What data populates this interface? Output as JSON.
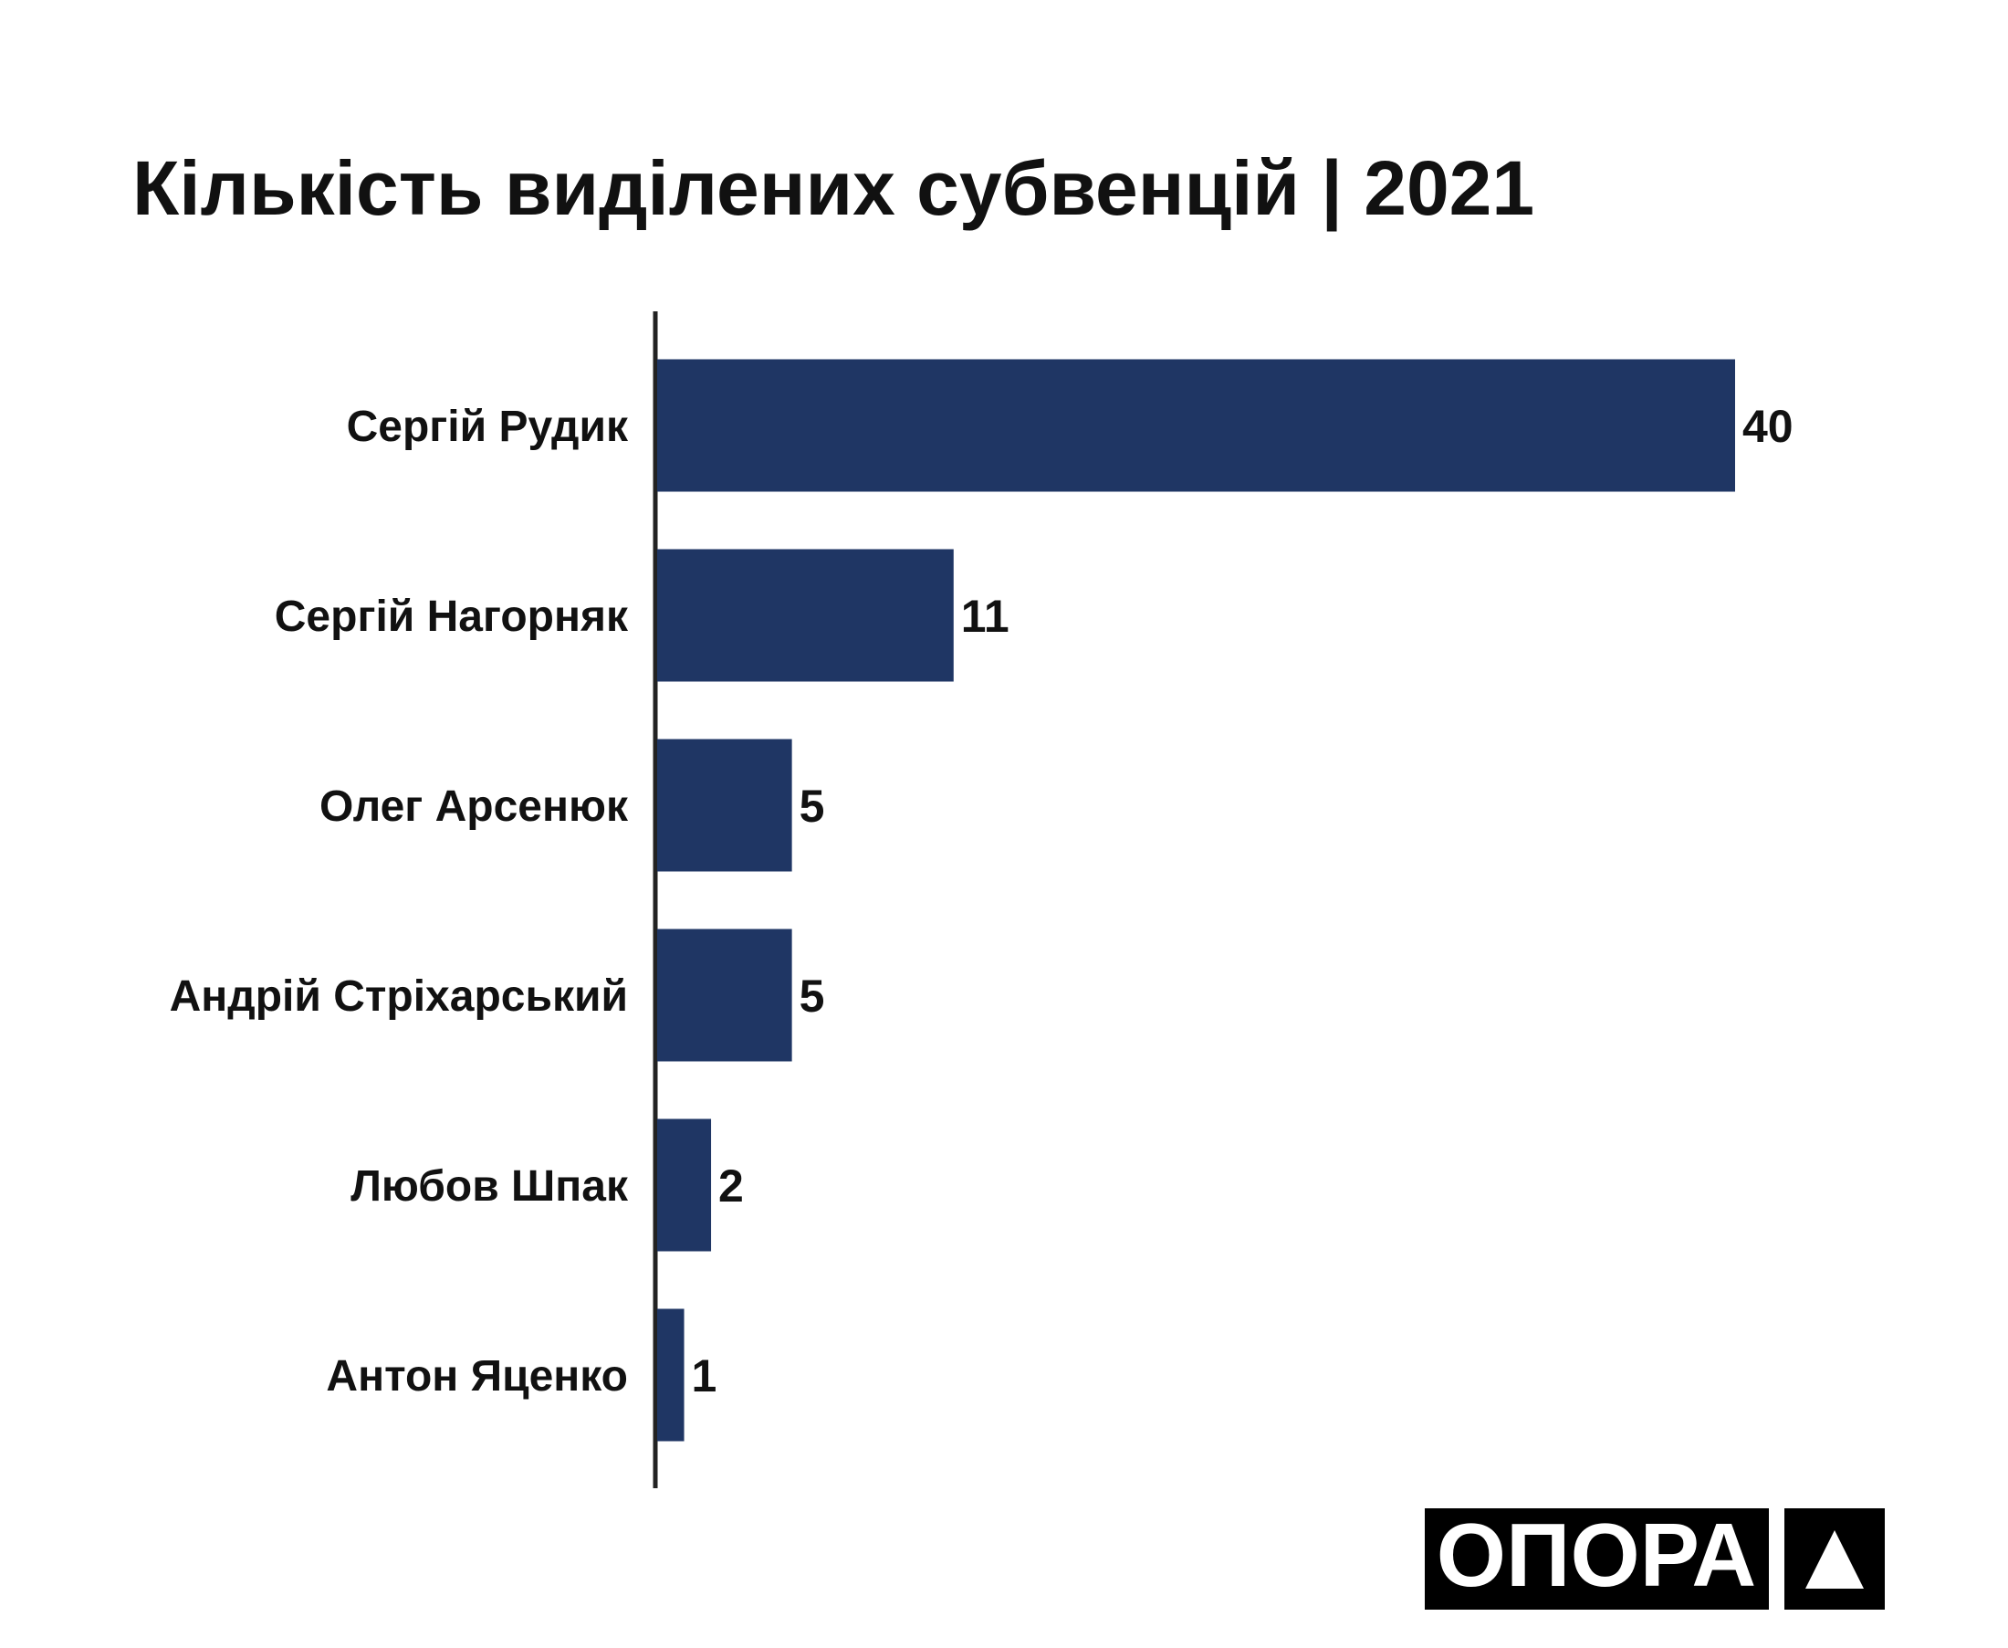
{
  "chart_data": {
    "type": "bar",
    "orientation": "horizontal",
    "title": "Кількість виділених субвенцій | 2021",
    "categories": [
      "Сергій Рудик",
      "Сергій Нагорняк",
      "Олег Арсенюк",
      "Андрій Стріхарський",
      "Любов Шпак",
      "Антон Яценко"
    ],
    "values": [
      40,
      11,
      5,
      5,
      2,
      1
    ],
    "color": "#1f3664",
    "xlim": [
      0,
      40
    ]
  },
  "logo": "ОПОРА"
}
